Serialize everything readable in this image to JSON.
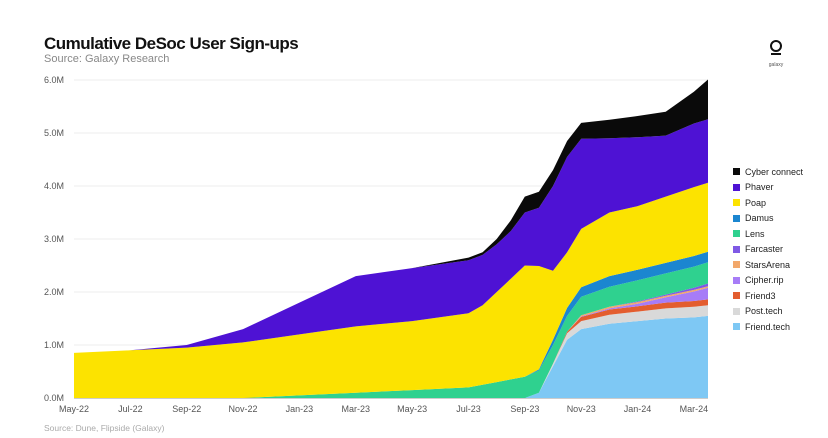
{
  "chart_data": {
    "type": "area",
    "title": "Cumulative DeSoc User Sign-ups",
    "subtitle": "Source: Galaxy Research",
    "source_note": "Source: Dune, Flipside (Galaxy)",
    "logo_text": "galaxy",
    "xlabel": "",
    "ylabel": "",
    "ylim": [
      0,
      6
    ],
    "y_ticks": [
      "0.0M",
      "1.0M",
      "2.0M",
      "3.0M",
      "4.0M",
      "5.0M",
      "6.0M"
    ],
    "x_ticks": [
      "May-22",
      "Jul-22",
      "Sep-22",
      "Nov-22",
      "Jan-23",
      "Mar-23",
      "May-23",
      "Jul-23",
      "Sep-23",
      "Nov-23",
      "Jan-24",
      "Mar-24"
    ],
    "x": [
      0,
      2,
      4,
      6,
      8,
      10,
      12,
      14,
      14.5,
      15,
      15.5,
      16,
      16.5,
      17,
      17.5,
      18,
      19,
      20,
      21,
      22,
      22.5
    ],
    "legend_position": "right",
    "series": [
      {
        "name": "Friend.tech",
        "color": "#7ec8f4",
        "values": [
          0,
          0,
          0,
          0,
          0,
          0,
          0,
          0,
          0,
          0,
          0,
          0,
          0.1,
          0.6,
          1.1,
          1.3,
          1.4,
          1.45,
          1.5,
          1.52,
          1.55
        ]
      },
      {
        "name": "Post.tech",
        "color": "#d9d9d9",
        "values": [
          0,
          0,
          0,
          0,
          0,
          0,
          0,
          0,
          0,
          0,
          0,
          0,
          0,
          0.05,
          0.12,
          0.15,
          0.17,
          0.18,
          0.19,
          0.2,
          0.2
        ]
      },
      {
        "name": "Friend3",
        "color": "#e35d2f",
        "values": [
          0,
          0,
          0,
          0,
          0,
          0,
          0,
          0,
          0,
          0,
          0,
          0,
          0,
          0,
          0.03,
          0.08,
          0.1,
          0.1,
          0.11,
          0.11,
          0.11
        ]
      },
      {
        "name": "Cipher.rip",
        "color": "#a77cf7",
        "values": [
          0,
          0,
          0,
          0,
          0,
          0,
          0,
          0,
          0,
          0,
          0,
          0,
          0,
          0,
          0,
          0.01,
          0.02,
          0.05,
          0.1,
          0.18,
          0.22
        ]
      },
      {
        "name": "StarsArena",
        "color": "#f2a86b",
        "values": [
          0,
          0,
          0,
          0,
          0,
          0,
          0,
          0,
          0,
          0,
          0,
          0,
          0,
          0,
          0,
          0.02,
          0.03,
          0.03,
          0.03,
          0.03,
          0.03
        ]
      },
      {
        "name": "Farcaster",
        "color": "#7f59e5",
        "values": [
          0,
          0,
          0,
          0,
          0,
          0,
          0,
          0,
          0,
          0,
          0,
          0,
          0,
          0,
          0,
          0,
          0,
          0.01,
          0.02,
          0.04,
          0.05
        ]
      },
      {
        "name": "Lens",
        "color": "#2fd18f",
        "values": [
          0,
          0,
          0,
          0,
          0.05,
          0.1,
          0.15,
          0.2,
          0.25,
          0.3,
          0.35,
          0.4,
          0.42,
          0.35,
          0.3,
          0.35,
          0.38,
          0.4,
          0.4,
          0.4,
          0.4
        ]
      },
      {
        "name": "Damus",
        "color": "#1b86d0",
        "values": [
          0,
          0,
          0,
          0,
          0,
          0,
          0,
          0,
          0,
          0,
          0,
          0,
          0.02,
          0.1,
          0.15,
          0.18,
          0.2,
          0.2,
          0.2,
          0.2,
          0.2
        ]
      },
      {
        "name": "Poap",
        "color": "#fce300",
        "values": [
          0.85,
          0.9,
          0.95,
          1.05,
          1.15,
          1.25,
          1.3,
          1.4,
          1.5,
          1.7,
          1.9,
          2.1,
          1.95,
          1.3,
          1.05,
          1.1,
          1.2,
          1.2,
          1.25,
          1.3,
          1.3
        ]
      },
      {
        "name": "Phaver",
        "color": "#4e12d4",
        "values": [
          0,
          0,
          0.05,
          0.25,
          0.6,
          0.95,
          1.0,
          1.0,
          0.95,
          0.9,
          0.9,
          1.0,
          1.1,
          1.6,
          1.8,
          1.7,
          1.4,
          1.3,
          1.15,
          1.2,
          1.2
        ]
      },
      {
        "name": "Cyber connect",
        "color": "#0a0a0a",
        "values": [
          0,
          0,
          0,
          0,
          0,
          0,
          0,
          0.05,
          0.05,
          0.1,
          0.2,
          0.3,
          0.3,
          0.3,
          0.3,
          0.3,
          0.35,
          0.4,
          0.45,
          0.6,
          0.75
        ]
      }
    ],
    "legend_order": [
      "Cyber connect",
      "Phaver",
      "Poap",
      "Damus",
      "Lens",
      "Farcaster",
      "StarsArena",
      "Cipher.rip",
      "Friend3",
      "Post.tech",
      "Friend.tech"
    ]
  }
}
